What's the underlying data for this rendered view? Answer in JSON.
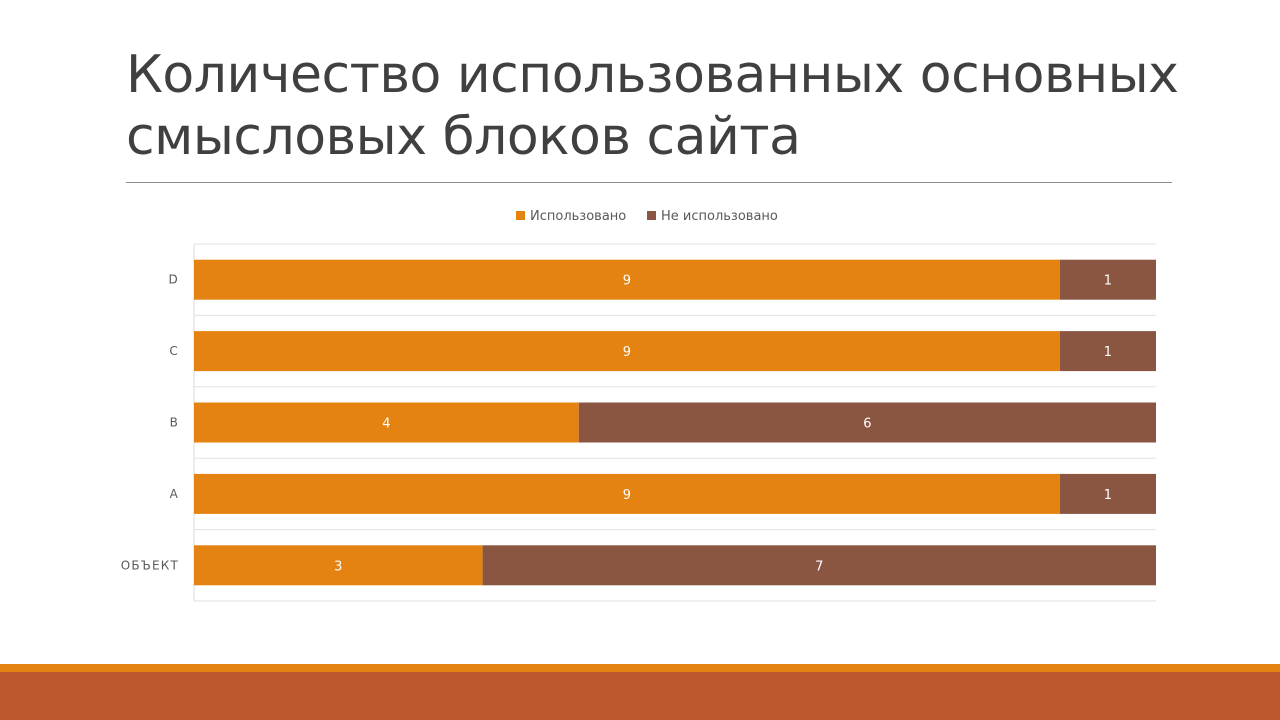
{
  "slide": {
    "title": "Количество использованных основных смысловых блоков сайта"
  },
  "colors": {
    "used": "#e48312",
    "unused": "#8a5641",
    "footer_line": "#e48312",
    "footer_band": "#bd582c"
  },
  "chart_data": {
    "type": "bar",
    "orientation": "horizontal",
    "stacked": "percent",
    "categories": [
      "ОБЪЕКТ",
      "A",
      "B",
      "C",
      "D"
    ],
    "series": [
      {
        "name": "Использовано",
        "values": [
          3,
          9,
          4,
          9,
          9
        ]
      },
      {
        "name": "Не использовано",
        "values": [
          7,
          1,
          6,
          1,
          1
        ]
      }
    ],
    "legend_position": "top",
    "grid": true,
    "data_labels": true
  }
}
